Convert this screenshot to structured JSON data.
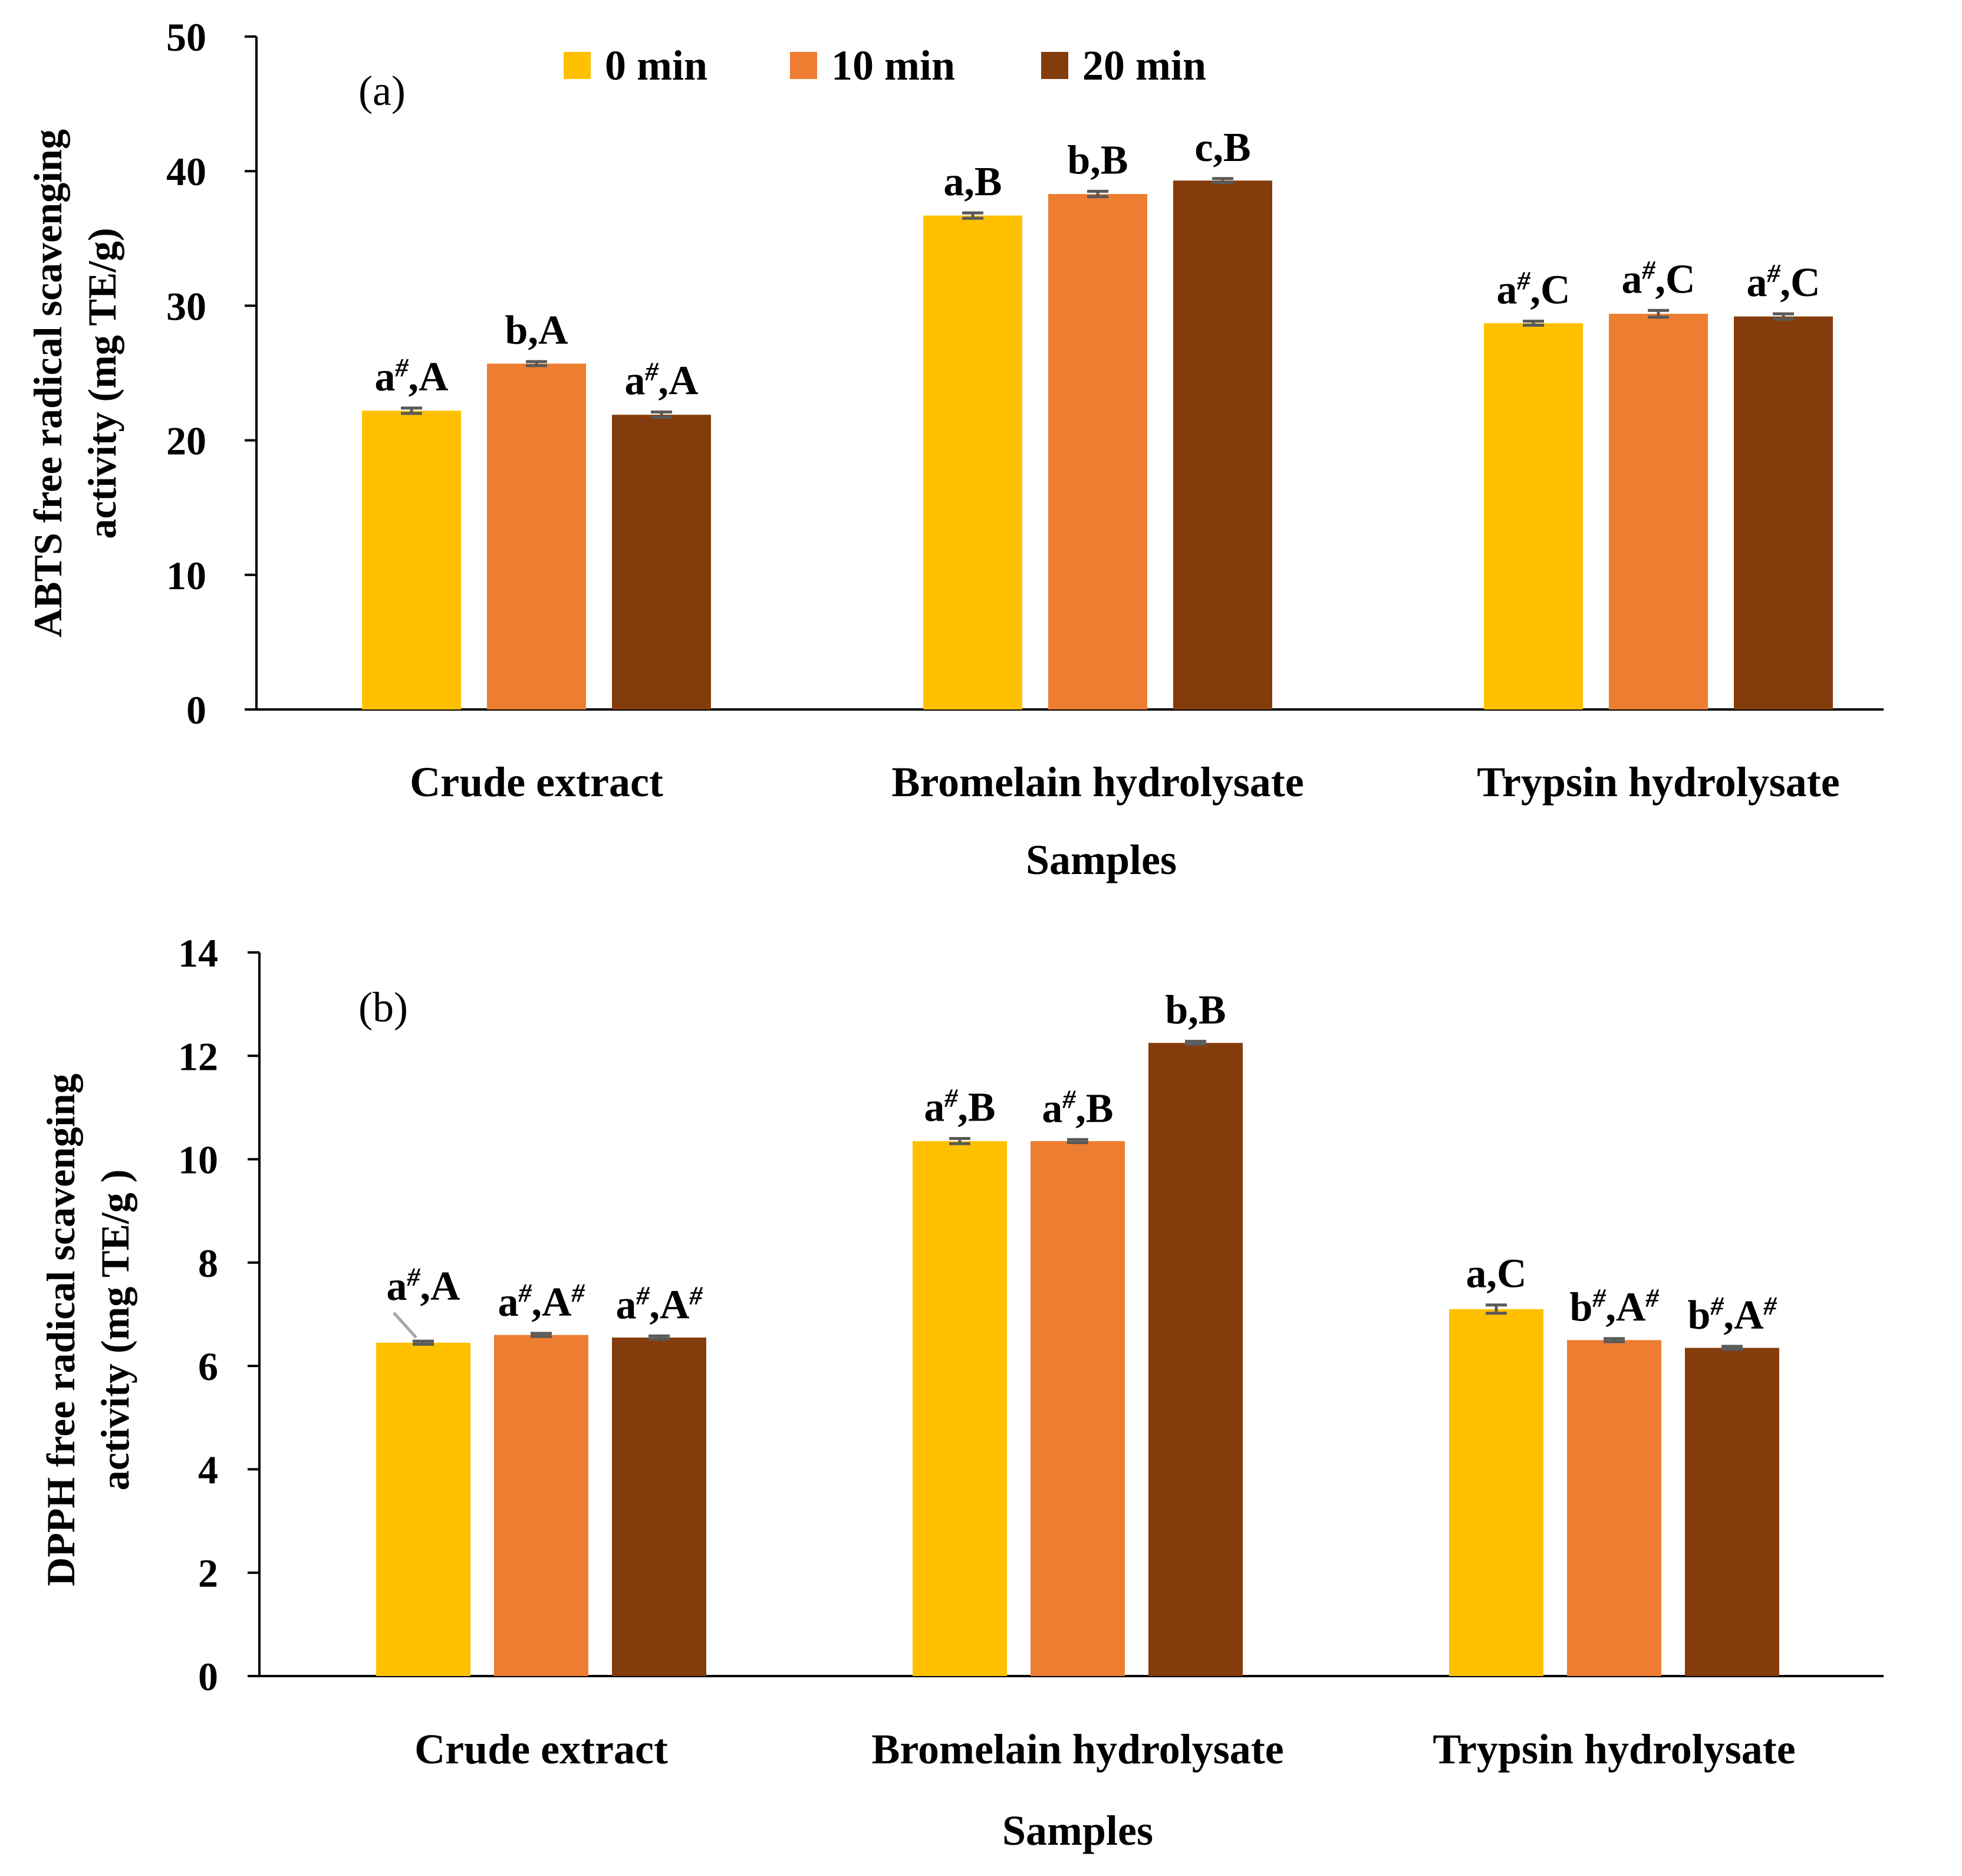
{
  "chart_data": [
    {
      "type": "bar",
      "panel_label": "(a)",
      "categories": [
        "Crude extract",
        "Bromelain hydrolysate",
        "Trypsin hydrolysate"
      ],
      "series": [
        {
          "name": "0 min",
          "color": "#FFC000",
          "values": [
            22.2,
            36.7,
            28.7
          ],
          "errors": [
            0.2,
            0.2,
            0.15
          ],
          "labels": [
            [
              "a",
              "#",
              ",A",
              ""
            ],
            [
              "a",
              "",
              ",B",
              ""
            ],
            [
              "a",
              "#",
              ",C",
              ""
            ]
          ]
        },
        {
          "name": "10 min",
          "color": "#ED7D31",
          "values": [
            25.7,
            38.3,
            29.4
          ],
          "errors": [
            0.15,
            0.2,
            0.25
          ],
          "labels": [
            [
              "b",
              "",
              ",A",
              ""
            ],
            [
              "b",
              "",
              ",B",
              ""
            ],
            [
              "a",
              "#",
              ",C",
              ""
            ]
          ]
        },
        {
          "name": "20 min",
          "color": "#843C0C",
          "values": [
            21.9,
            39.3,
            29.2
          ],
          "errors": [
            0.2,
            0.15,
            0.2
          ],
          "labels": [
            [
              "a",
              "#",
              ",A",
              ""
            ],
            [
              "c",
              "",
              ",B",
              ""
            ],
            [
              "a",
              "#",
              ",C",
              ""
            ]
          ]
        }
      ],
      "xlabel": "Samples",
      "ylabel_lines": [
        "ABTS free radical scavenging",
        "activity (mg TE/g)"
      ],
      "ylim": [
        0,
        50
      ],
      "yticks": [
        "0",
        "10",
        "20",
        "30",
        "40",
        "50"
      ],
      "legend": "top-center"
    },
    {
      "type": "bar",
      "panel_label": "(b)",
      "categories": [
        "Crude extract",
        "Bromelain hydrolysate",
        "Trypsin hydrolysate"
      ],
      "series": [
        {
          "name": "0 min",
          "color": "#FFC000",
          "values": [
            6.45,
            10.35,
            7.1
          ],
          "errors": [
            0.03,
            0.05,
            0.08
          ],
          "labels": [
            [
              "a",
              "#",
              ",A",
              ""
            ],
            [
              "a",
              "#",
              ",B",
              ""
            ],
            [
              "a",
              "",
              ",C",
              ""
            ]
          ]
        },
        {
          "name": "10 min",
          "color": "#ED7D31",
          "values": [
            6.6,
            10.35,
            6.5
          ],
          "errors": [
            0.03,
            0.03,
            0.03
          ],
          "labels": [
            [
              "a",
              "#",
              ",A",
              "#"
            ],
            [
              "a",
              "#",
              ",B",
              ""
            ],
            [
              "b",
              "#",
              ",A",
              "#"
            ]
          ]
        },
        {
          "name": "20 min",
          "color": "#843C0C",
          "values": [
            6.55,
            12.25,
            6.35
          ],
          "errors": [
            0.03,
            0.03,
            0.03
          ],
          "labels": [
            [
              "a",
              "#",
              ",A",
              "#"
            ],
            [
              "b",
              "",
              ",B",
              ""
            ],
            [
              "b",
              "#",
              ",A",
              "#"
            ]
          ]
        }
      ],
      "xlabel": "Samples",
      "ylabel_lines": [
        "DPPH free radical scavenging",
        "activity (mg TE/g )"
      ],
      "ylim": [
        0,
        14
      ],
      "yticks": [
        "0",
        "2",
        "4",
        "6",
        "8",
        "10",
        "12",
        "14"
      ],
      "legend": "none"
    }
  ]
}
